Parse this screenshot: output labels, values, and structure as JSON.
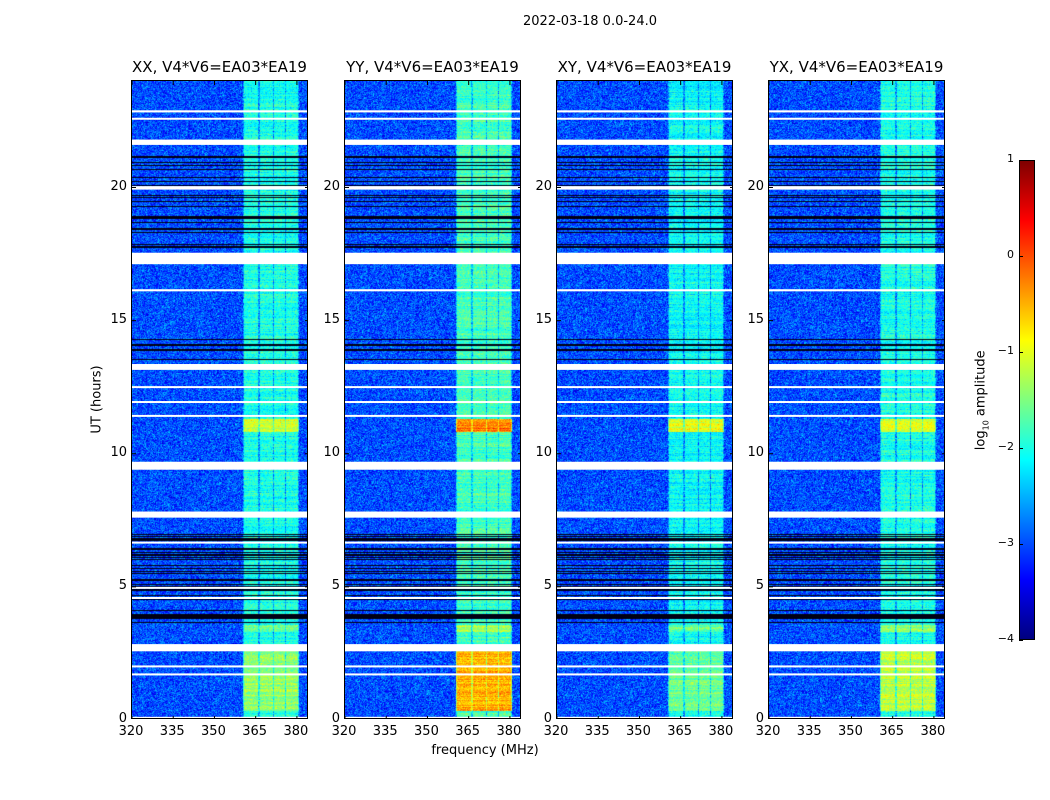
{
  "chart_data": {
    "type": "heatmap",
    "title": "2022-03-18 0.0-24.0",
    "xlabel": "frequency (MHz)",
    "ylabel": "UT (hours)",
    "xlim": [
      320,
      384.4
    ],
    "ylim": [
      0,
      24
    ],
    "xticks": [
      320,
      335,
      350,
      365,
      380
    ],
    "yticks": [
      0,
      5,
      10,
      15,
      20
    ],
    "panels": [
      {
        "pol": "XX",
        "title": "XX, V4*V6=EA03*EA19",
        "band_level": -2.0,
        "segment_levels": [
          -1.4,
          -1.1,
          -1.5
        ]
      },
      {
        "pol": "YY",
        "title": "YY, V4*V6=EA03*EA19",
        "band_level": -1.8,
        "segment_levels": [
          -0.5,
          -0.2,
          -1.3
        ]
      },
      {
        "pol": "XY",
        "title": "XY, V4*V6=EA03*EA19",
        "band_level": -2.1,
        "segment_levels": [
          -1.6,
          -1.0,
          -1.6
        ]
      },
      {
        "pol": "YX",
        "title": "YX, V4*V6=EA03*EA19",
        "band_level": -2.0,
        "segment_levels": [
          -1.2,
          -1.1,
          -1.4
        ]
      }
    ],
    "background_level": -3.0,
    "subbands_mhz": [
      [
        360.7,
        365.9
      ],
      [
        366.4,
        371.3
      ],
      [
        371.8,
        375.6
      ],
      [
        376.1,
        380.4
      ]
    ],
    "bright_segments_ut": [
      [
        0.35,
        2.6
      ],
      [
        10.8,
        11.3
      ],
      [
        3.3,
        3.55
      ]
    ],
    "flagged_ut": [
      [
        22.82,
        22.9
      ],
      [
        22.55,
        22.62
      ],
      [
        21.6,
        21.8
      ],
      [
        19.92,
        20.05
      ],
      [
        17.12,
        17.55
      ],
      [
        16.1,
        16.18
      ],
      [
        13.15,
        13.37
      ],
      [
        12.48,
        12.54
      ],
      [
        11.92,
        11.98
      ],
      [
        11.4,
        11.46
      ],
      [
        9.4,
        9.7
      ],
      [
        7.6,
        7.83
      ],
      [
        6.64,
        6.7
      ],
      [
        4.96,
        5.0
      ],
      [
        4.58,
        4.62
      ],
      [
        2.58,
        2.85
      ],
      [
        2.0,
        2.05
      ],
      [
        1.7,
        1.75
      ],
      [
        0.06,
        0.12
      ]
    ],
    "dropout_ut": [
      [
        3.6,
        7.0
      ],
      [
        17.6,
        21.2
      ],
      [
        13.4,
        14.4
      ],
      [
        9.0,
        9.4
      ]
    ],
    "colorbar": {
      "label_prefix": "log",
      "label_sub": "10",
      "label_suffix": " amplitude",
      "range": [
        -4,
        1
      ],
      "ticks": [
        "1",
        "0",
        "−1",
        "−2",
        "−3",
        "−4"
      ],
      "tick_values": [
        1,
        0,
        -1,
        -2,
        -3,
        -4
      ],
      "colormap": "jet"
    }
  }
}
